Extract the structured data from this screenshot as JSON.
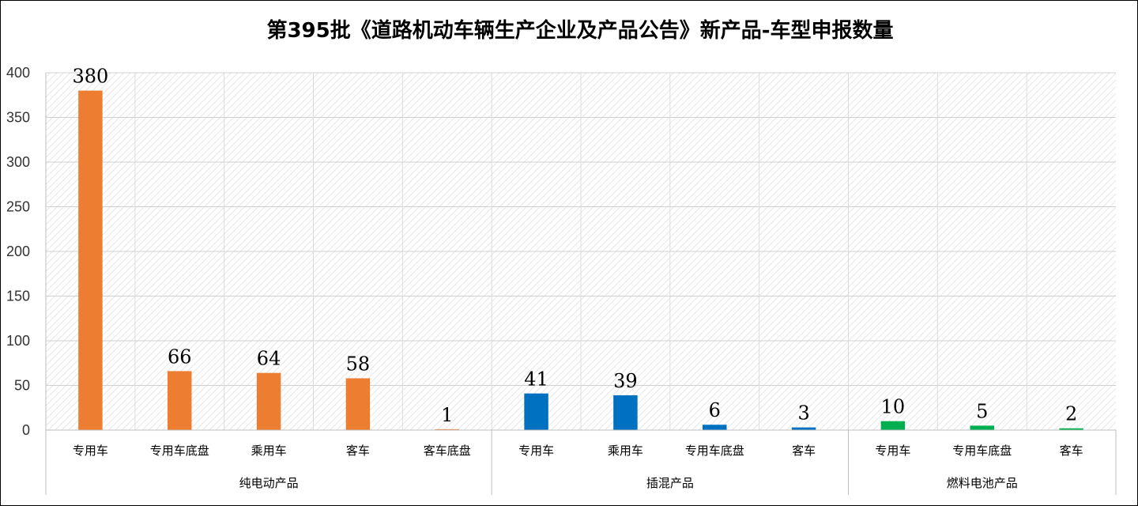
{
  "chart_data": {
    "type": "bar",
    "title": "第395批《道路机动车辆生产企业及产品公告》新产品-车型申报数量",
    "ylim": [
      0,
      400
    ],
    "yticks": [
      0,
      50,
      100,
      150,
      200,
      250,
      300,
      350,
      400
    ],
    "grid": true,
    "groups": [
      {
        "name": "纯电动产品",
        "color": "#ED7D31",
        "categories": [
          "专用车",
          "专用车底盘",
          "乘用车",
          "客车",
          "客车底盘"
        ],
        "values": [
          380,
          66,
          64,
          58,
          1
        ]
      },
      {
        "name": "插混产品",
        "color": "#0070C0",
        "categories": [
          "专用车",
          "乘用车",
          "专用车底盘",
          "客车"
        ],
        "values": [
          41,
          39,
          6,
          3
        ]
      },
      {
        "name": "燃料电池产品",
        "color": "#00B050",
        "categories": [
          "专用车",
          "专用车底盘",
          "客车"
        ],
        "values": [
          10,
          5,
          2
        ]
      }
    ]
  }
}
